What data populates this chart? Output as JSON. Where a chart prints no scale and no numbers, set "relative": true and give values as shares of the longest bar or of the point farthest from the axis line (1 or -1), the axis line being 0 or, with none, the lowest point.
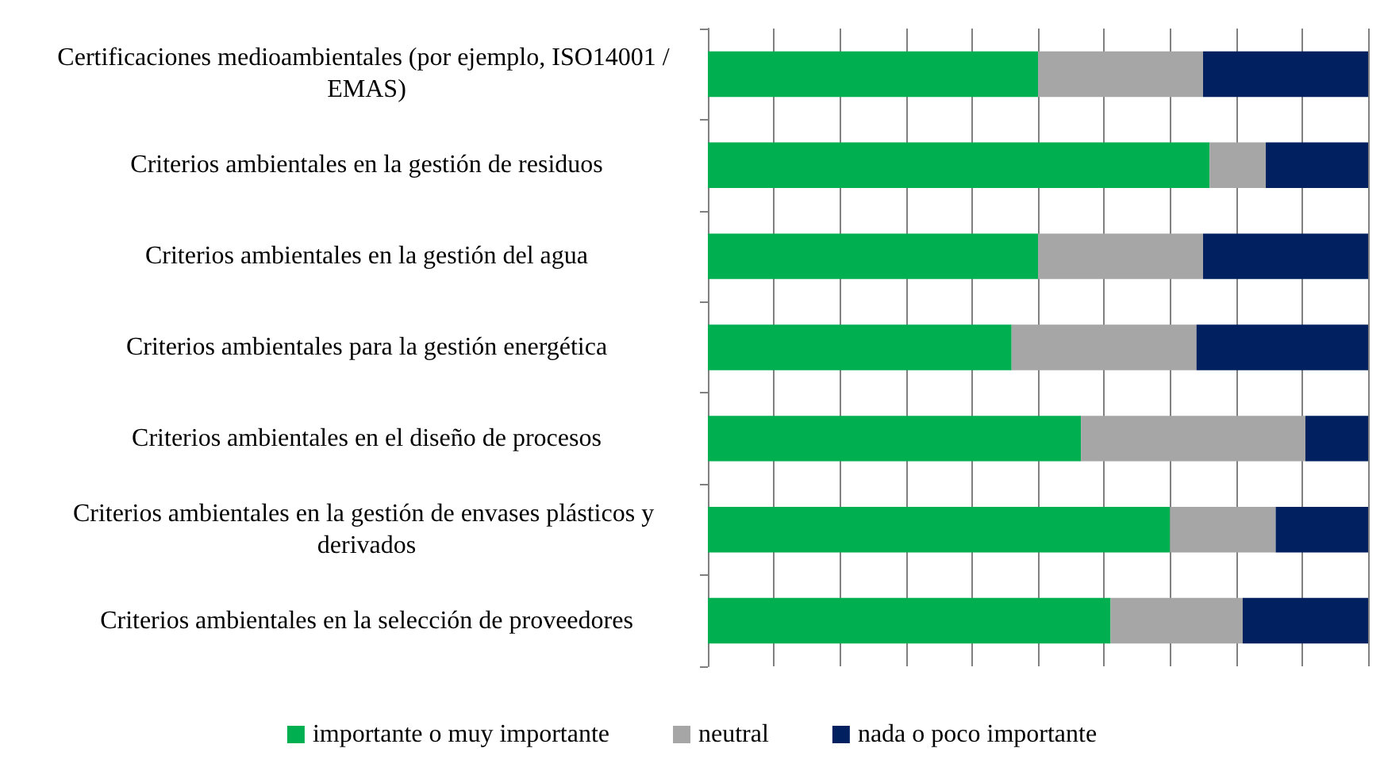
{
  "chart_data": {
    "type": "bar",
    "orientation": "horizontal",
    "stacked": true,
    "relative": true,
    "grid": "x",
    "legend": "bottom",
    "categories": [
      "Certificaciones medioambientales (por ejemplo, ISO14001 / EMAS)",
      "Criterios ambientales en la gestión de residuos",
      "Criterios ambientales en la gestión del agua",
      "Criterios ambientales para la gestión energética",
      "Criterios ambientales en el diseño de procesos",
      "Criterios ambientales en la gestión de envases plásticos y derivados",
      "Criterios ambientales en la selección de proveedores"
    ],
    "series": [
      {
        "name": "importante o muy importante",
        "color": "#00b050",
        "values": [
          0.5,
          0.76,
          0.5,
          0.46,
          0.565,
          0.7,
          0.61
        ]
      },
      {
        "name": "neutral",
        "color": "#a6a6a6",
        "values": [
          0.25,
          0.085,
          0.25,
          0.28,
          0.34,
          0.16,
          0.2
        ]
      },
      {
        "name": "nada o poco importante",
        "color": "#002060",
        "values": [
          0.25,
          0.155,
          0.25,
          0.26,
          0.095,
          0.14,
          0.19
        ]
      }
    ]
  }
}
